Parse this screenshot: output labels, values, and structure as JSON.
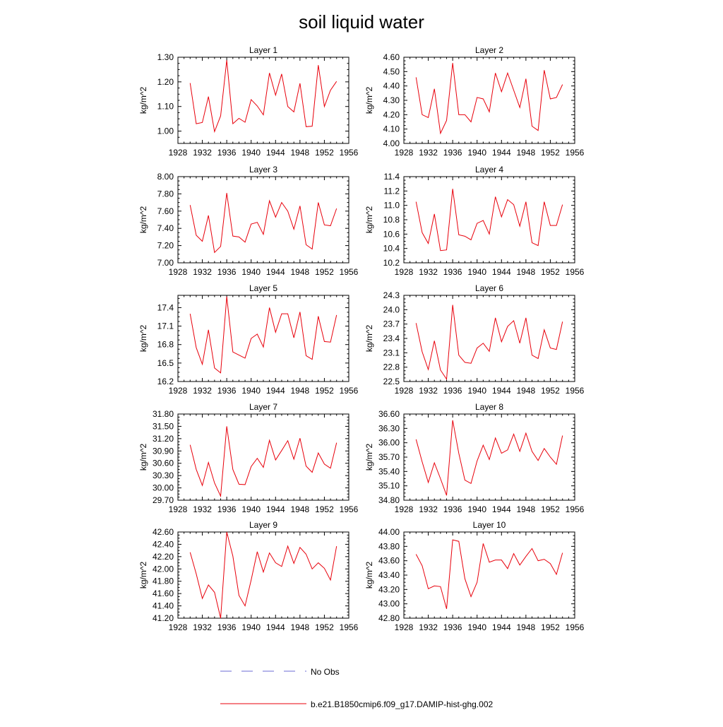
{
  "title": "soil liquid water",
  "colors": {
    "series": "#e8000b",
    "no_obs": "#6b6bd6",
    "axis": "#000000"
  },
  "legend": {
    "no_obs_label": "No Obs",
    "model_label": "b.e21.B1850cmip6.f09_g17.DAMIP-hist-ghg.002"
  },
  "chart_data": [
    {
      "type": "line",
      "title": "Layer 1",
      "ylabel": "kg/m^2",
      "xlim": [
        1928,
        1956
      ],
      "xticks": [
        1928,
        1932,
        1936,
        1940,
        1944,
        1948,
        1952,
        1956
      ],
      "ylim": [
        0.95,
        1.3
      ],
      "yticks": [
        "1.00",
        "1.10",
        "1.20",
        "1.30"
      ],
      "x": [
        1930,
        1931,
        1932,
        1933,
        1934,
        1935,
        1936,
        1937,
        1938,
        1939,
        1940,
        1941,
        1942,
        1943,
        1944,
        1945,
        1946,
        1947,
        1948,
        1949,
        1950,
        1951,
        1952,
        1953,
        1954
      ],
      "values": [
        1.195,
        1.03,
        1.035,
        1.14,
        0.998,
        1.062,
        1.288,
        1.03,
        1.052,
        1.036,
        1.128,
        1.102,
        1.066,
        1.236,
        1.146,
        1.232,
        1.1,
        1.078,
        1.194,
        1.018,
        1.02,
        1.268,
        1.1,
        1.166,
        1.202
      ]
    },
    {
      "type": "line",
      "title": "Layer 2",
      "ylabel": "kg/m^2",
      "xlim": [
        1928,
        1956
      ],
      "xticks": [
        1928,
        1932,
        1936,
        1940,
        1944,
        1948,
        1952,
        1956
      ],
      "ylim": [
        4.0,
        4.6
      ],
      "yticks": [
        "4.00",
        "4.10",
        "4.20",
        "4.30",
        "4.40",
        "4.50",
        "4.60"
      ],
      "x": [
        1930,
        1931,
        1932,
        1933,
        1934,
        1935,
        1936,
        1937,
        1938,
        1939,
        1940,
        1941,
        1942,
        1943,
        1944,
        1945,
        1946,
        1947,
        1948,
        1949,
        1950,
        1951,
        1952,
        1953,
        1954
      ],
      "values": [
        4.46,
        4.2,
        4.18,
        4.38,
        4.07,
        4.16,
        4.56,
        4.2,
        4.2,
        4.15,
        4.32,
        4.31,
        4.22,
        4.49,
        4.36,
        4.49,
        4.37,
        4.25,
        4.45,
        4.12,
        4.09,
        4.51,
        4.31,
        4.32,
        4.41
      ]
    },
    {
      "type": "line",
      "title": "Layer 3",
      "ylabel": "kg/m^2",
      "xlim": [
        1928,
        1956
      ],
      "xticks": [
        1928,
        1932,
        1936,
        1940,
        1944,
        1948,
        1952,
        1956
      ],
      "ylim": [
        7.0,
        8.0
      ],
      "yticks": [
        "7.00",
        "7.20",
        "7.40",
        "7.60",
        "7.80",
        "8.00"
      ],
      "x": [
        1930,
        1931,
        1932,
        1933,
        1934,
        1935,
        1936,
        1937,
        1938,
        1939,
        1940,
        1941,
        1942,
        1943,
        1944,
        1945,
        1946,
        1947,
        1948,
        1949,
        1950,
        1951,
        1952,
        1953,
        1954
      ],
      "values": [
        7.67,
        7.32,
        7.25,
        7.55,
        7.12,
        7.19,
        7.81,
        7.31,
        7.3,
        7.24,
        7.45,
        7.47,
        7.33,
        7.72,
        7.53,
        7.7,
        7.6,
        7.39,
        7.66,
        7.21,
        7.16,
        7.7,
        7.44,
        7.43,
        7.63
      ]
    },
    {
      "type": "line",
      "title": "Layer 4",
      "ylabel": "kg/m^2",
      "xlim": [
        1928,
        1956
      ],
      "xticks": [
        1928,
        1932,
        1936,
        1940,
        1944,
        1948,
        1952,
        1956
      ],
      "ylim": [
        10.2,
        11.4
      ],
      "yticks": [
        "10.2",
        "10.4",
        "10.6",
        "10.8",
        "11.0",
        "11.2",
        "11.4"
      ],
      "x": [
        1930,
        1931,
        1932,
        1933,
        1934,
        1935,
        1936,
        1937,
        1938,
        1939,
        1940,
        1941,
        1942,
        1943,
        1944,
        1945,
        1946,
        1947,
        1948,
        1949,
        1950,
        1951,
        1952,
        1953,
        1954
      ],
      "values": [
        11.05,
        10.62,
        10.47,
        10.88,
        10.37,
        10.38,
        11.23,
        10.59,
        10.57,
        10.52,
        10.75,
        10.79,
        10.6,
        11.12,
        10.84,
        11.08,
        11.01,
        10.71,
        11.05,
        10.48,
        10.44,
        11.05,
        10.72,
        10.72,
        11.01
      ]
    },
    {
      "type": "line",
      "title": "Layer 5",
      "ylabel": "kg/m^2",
      "xlim": [
        1928,
        1956
      ],
      "xticks": [
        1928,
        1932,
        1936,
        1940,
        1944,
        1948,
        1952,
        1956
      ],
      "ylim": [
        16.2,
        17.6
      ],
      "yticks": [
        "16.2",
        "16.5",
        "16.8",
        "17.1",
        "17.4"
      ],
      "x": [
        1930,
        1931,
        1932,
        1933,
        1934,
        1935,
        1936,
        1937,
        1938,
        1939,
        1940,
        1941,
        1942,
        1943,
        1944,
        1945,
        1946,
        1947,
        1948,
        1949,
        1950,
        1951,
        1952,
        1953,
        1954
      ],
      "values": [
        17.3,
        16.75,
        16.48,
        17.04,
        16.42,
        16.34,
        17.58,
        16.68,
        16.63,
        16.58,
        16.9,
        16.97,
        16.76,
        17.4,
        17.0,
        17.3,
        17.3,
        16.91,
        17.33,
        16.62,
        16.56,
        17.26,
        16.85,
        16.84,
        17.28
      ]
    },
    {
      "type": "line",
      "title": "Layer 6",
      "ylabel": "kg/m^2",
      "xlim": [
        1928,
        1956
      ],
      "xticks": [
        1928,
        1932,
        1936,
        1940,
        1944,
        1948,
        1952,
        1956
      ],
      "ylim": [
        22.5,
        24.3
      ],
      "yticks": [
        "22.5",
        "22.8",
        "23.1",
        "23.4",
        "23.7",
        "24.0",
        "24.3"
      ],
      "x": [
        1930,
        1931,
        1932,
        1933,
        1934,
        1935,
        1936,
        1937,
        1938,
        1939,
        1940,
        1941,
        1942,
        1943,
        1944,
        1945,
        1946,
        1947,
        1948,
        1949,
        1950,
        1951,
        1952,
        1953,
        1954
      ],
      "values": [
        23.72,
        23.12,
        22.75,
        23.35,
        22.74,
        22.55,
        24.1,
        23.05,
        22.9,
        22.88,
        23.2,
        23.3,
        23.13,
        23.83,
        23.33,
        23.65,
        23.77,
        23.3,
        23.83,
        23.05,
        22.98,
        23.58,
        23.2,
        23.17,
        23.75
      ]
    },
    {
      "type": "line",
      "title": "Layer 7",
      "ylabel": "kg/m^2",
      "xlim": [
        1928,
        1956
      ],
      "xticks": [
        1928,
        1932,
        1936,
        1940,
        1944,
        1948,
        1952,
        1956
      ],
      "ylim": [
        29.7,
        31.8
      ],
      "yticks": [
        "29.70",
        "30.00",
        "30.30",
        "30.60",
        "30.90",
        "31.20",
        "31.50",
        "31.80"
      ],
      "x": [
        1930,
        1931,
        1932,
        1933,
        1934,
        1935,
        1936,
        1937,
        1938,
        1939,
        1940,
        1941,
        1942,
        1943,
        1944,
        1945,
        1946,
        1947,
        1948,
        1949,
        1950,
        1951,
        1952,
        1953,
        1954
      ],
      "values": [
        31.05,
        30.45,
        30.06,
        30.62,
        30.12,
        29.8,
        31.5,
        30.45,
        30.09,
        30.08,
        30.52,
        30.72,
        30.5,
        31.16,
        30.68,
        30.91,
        31.15,
        30.7,
        31.21,
        30.53,
        30.38,
        30.85,
        30.58,
        30.48,
        31.1
      ]
    },
    {
      "type": "line",
      "title": "Layer 8",
      "ylabel": "kg/m^2",
      "xlim": [
        1928,
        1956
      ],
      "xticks": [
        1928,
        1932,
        1936,
        1940,
        1944,
        1948,
        1952,
        1956
      ],
      "ylim": [
        34.8,
        36.6
      ],
      "yticks": [
        "34.80",
        "35.10",
        "35.40",
        "35.70",
        "36.00",
        "36.30",
        "36.60"
      ],
      "x": [
        1930,
        1931,
        1932,
        1933,
        1934,
        1935,
        1936,
        1937,
        1938,
        1939,
        1940,
        1941,
        1942,
        1943,
        1944,
        1945,
        1946,
        1947,
        1948,
        1949,
        1950,
        1951,
        1952,
        1953,
        1954
      ],
      "values": [
        36.07,
        35.6,
        35.17,
        35.58,
        35.25,
        34.9,
        36.47,
        35.78,
        35.22,
        35.15,
        35.62,
        35.95,
        35.65,
        36.1,
        35.78,
        35.85,
        36.18,
        35.82,
        36.2,
        35.82,
        35.63,
        35.88,
        35.7,
        35.55,
        36.15
      ]
    },
    {
      "type": "line",
      "title": "Layer 9",
      "ylabel": "kg/m^2",
      "xlim": [
        1928,
        1956
      ],
      "xticks": [
        1928,
        1932,
        1936,
        1940,
        1944,
        1948,
        1952,
        1956
      ],
      "ylim": [
        41.2,
        42.6
      ],
      "yticks": [
        "41.20",
        "41.40",
        "41.60",
        "41.80",
        "42.00",
        "42.20",
        "42.40",
        "42.60"
      ],
      "x": [
        1930,
        1931,
        1932,
        1933,
        1934,
        1935,
        1936,
        1937,
        1938,
        1939,
        1940,
        1941,
        1942,
        1943,
        1944,
        1945,
        1946,
        1947,
        1948,
        1949,
        1950,
        1951,
        1952,
        1953,
        1954
      ],
      "values": [
        42.27,
        41.92,
        41.52,
        41.74,
        41.62,
        41.2,
        42.6,
        42.21,
        41.57,
        41.4,
        41.82,
        42.28,
        41.95,
        42.26,
        42.1,
        42.04,
        42.37,
        42.09,
        42.35,
        42.24,
        42.0,
        42.1,
        42.01,
        41.82,
        42.37
      ]
    },
    {
      "type": "line",
      "title": "Layer 10",
      "ylabel": "kg/m^2",
      "xlim": [
        1928,
        1956
      ],
      "xticks": [
        1928,
        1932,
        1936,
        1940,
        1944,
        1948,
        1952,
        1956
      ],
      "ylim": [
        42.8,
        44.0
      ],
      "yticks": [
        "42.80",
        "43.00",
        "43.20",
        "43.40",
        "43.60",
        "43.80",
        "44.00"
      ],
      "x": [
        1930,
        1931,
        1932,
        1933,
        1934,
        1935,
        1936,
        1937,
        1938,
        1939,
        1940,
        1941,
        1942,
        1943,
        1944,
        1945,
        1946,
        1947,
        1948,
        1949,
        1950,
        1951,
        1952,
        1953,
        1954
      ],
      "values": [
        43.69,
        43.53,
        43.21,
        43.25,
        43.24,
        42.93,
        43.89,
        43.87,
        43.35,
        43.1,
        43.3,
        43.84,
        43.58,
        43.61,
        43.61,
        43.49,
        43.7,
        43.54,
        43.66,
        43.77,
        43.6,
        43.62,
        43.56,
        43.41,
        43.71
      ]
    }
  ]
}
